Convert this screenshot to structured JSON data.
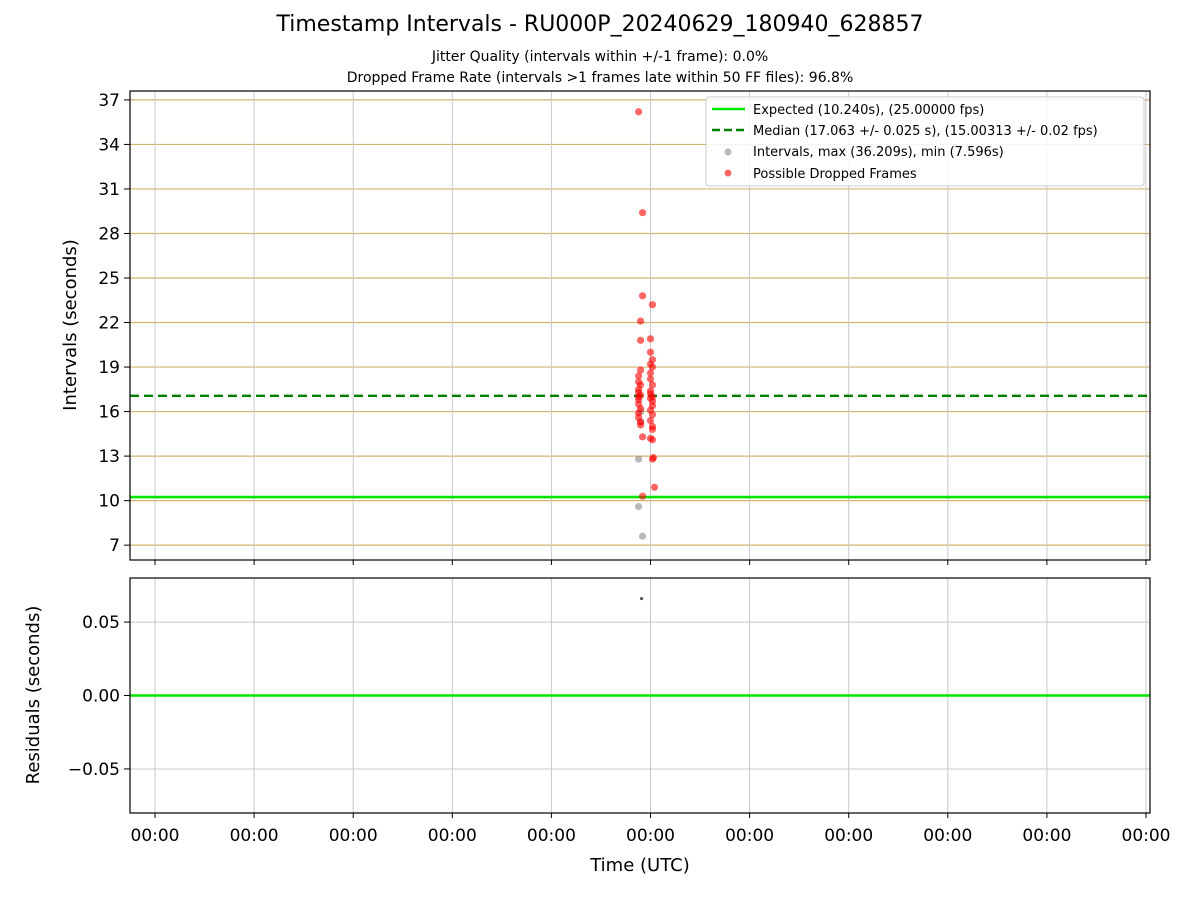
{
  "title": "Timestamp Intervals - RU000P_20240629_180940_628857",
  "subtitle1": "Jitter Quality (intervals within +/-1 frame): 0.0%",
  "subtitle2": "Dropped Frame Rate (intervals >1 frames late within 50 FF files): 96.8%",
  "colors": {
    "expected": "#00e600",
    "median": "#007f00",
    "intervals": "#808080",
    "dropped": "#ff0000",
    "grid_top": "#d2b46e",
    "grid_bottom": "#c8c8c8"
  },
  "chart_data": [
    {
      "type": "scatter",
      "ylabel": "Intervals (seconds)",
      "xlabel": "",
      "ylim": [
        6.0,
        37.6
      ],
      "yticks": [
        "37",
        "34",
        "31",
        "28",
        "25",
        "22",
        "19",
        "16",
        "13",
        "10",
        "7"
      ],
      "grid": true,
      "legend_position": "top-right",
      "legend": [
        "Expected (10.240s), (25.00000 fps)",
        "Median (17.063 +/- 0.025 s), (15.00313 +/- 0.02 fps)",
        "Intervals, max (36.209s), min (7.596s)",
        "Possible Dropped Frames"
      ],
      "expected_line": 10.24,
      "median_line": 17.063,
      "series": [
        {
          "name": "Intervals, max (36.209s), min (7.596s)",
          "x": [
            -0.12,
            -0.12,
            -0.08,
            -0.1,
            -0.1
          ],
          "values": [
            12.8,
            9.6,
            7.6,
            15.3,
            16.0
          ]
        },
        {
          "name": "Possible Dropped Frames",
          "x": [
            -0.12,
            -0.08,
            -0.08,
            0.02,
            -0.1,
            0.0,
            -0.1,
            0.0,
            0.02,
            0.0,
            0.02,
            -0.1,
            0.0,
            -0.12,
            0.0,
            -0.12,
            -0.1,
            0.02,
            -0.12,
            0.0,
            -0.12,
            0.0,
            -0.1,
            0.02,
            -0.12,
            0.0,
            -0.12,
            0.02,
            -0.12,
            0.02,
            -0.1,
            0.0,
            -0.12,
            0.02,
            -0.12,
            0.0,
            -0.1,
            0.02,
            -0.1,
            0.02,
            -0.08,
            0.0,
            0.02,
            0.03,
            0.02,
            -0.08,
            0.04
          ],
          "values": [
            36.2,
            29.4,
            23.8,
            23.2,
            22.1,
            20.9,
            20.8,
            20.0,
            19.5,
            19.2,
            19.0,
            18.8,
            18.6,
            18.4,
            18.2,
            18.0,
            17.8,
            17.8,
            17.5,
            17.4,
            17.3,
            17.2,
            17.1,
            17.0,
            17.0,
            16.9,
            16.8,
            16.7,
            16.5,
            16.4,
            16.2,
            16.1,
            15.9,
            15.8,
            15.6,
            15.4,
            15.3,
            15.0,
            15.1,
            14.8,
            14.3,
            14.2,
            14.1,
            12.9,
            12.8,
            10.3,
            10.9
          ]
        }
      ]
    },
    {
      "type": "scatter",
      "ylabel": "Residuals (seconds)",
      "xlabel": "Time (UTC)",
      "ylim": [
        -0.08,
        0.08
      ],
      "yticks": [
        "0.05",
        "0.00",
        "−0.05"
      ],
      "xticks": [
        "00:00",
        "00:00",
        "00:00",
        "00:00",
        "00:00",
        "00:00",
        "00:00",
        "00:00",
        "00:00",
        "00:00",
        "00:00"
      ],
      "grid": true,
      "zero_line": 0.0,
      "series": [
        {
          "x": [
            -0.09
          ],
          "values": [
            0.066
          ]
        }
      ]
    }
  ]
}
